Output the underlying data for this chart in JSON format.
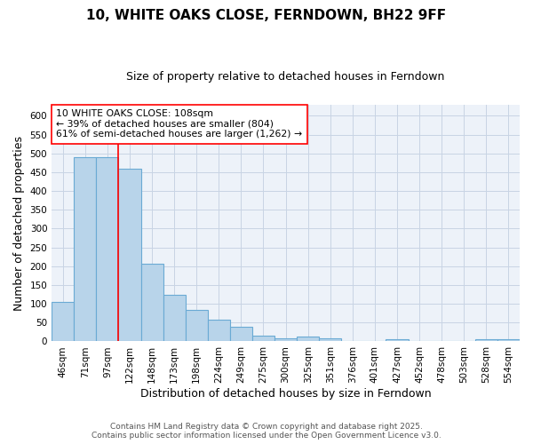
{
  "title": "10, WHITE OAKS CLOSE, FERNDOWN, BH22 9FF",
  "subtitle": "Size of property relative to detached houses in Ferndown",
  "xlabel": "Distribution of detached houses by size in Ferndown",
  "ylabel": "Number of detached properties",
  "bar_labels": [
    "46sqm",
    "71sqm",
    "97sqm",
    "122sqm",
    "148sqm",
    "173sqm",
    "198sqm",
    "224sqm",
    "249sqm",
    "275sqm",
    "300sqm",
    "325sqm",
    "351sqm",
    "376sqm",
    "401sqm",
    "427sqm",
    "452sqm",
    "478sqm",
    "503sqm",
    "528sqm",
    "554sqm"
  ],
  "bar_values": [
    105,
    490,
    490,
    460,
    207,
    124,
    84,
    57,
    38,
    15,
    9,
    12,
    9,
    1,
    0,
    6,
    0,
    0,
    0,
    5,
    5
  ],
  "bar_color": "#b8d4ea",
  "bar_edge_color": "#6aaad4",
  "grid_color": "#c8d4e4",
  "background_color": "#edf2f9",
  "annotation_text": "10 WHITE OAKS CLOSE: 108sqm\n← 39% of detached houses are smaller (804)\n61% of semi-detached houses are larger (1,262) →",
  "footer_text": "Contains HM Land Registry data © Crown copyright and database right 2025.\nContains public sector information licensed under the Open Government Licence v3.0.",
  "ylim": [
    0,
    630
  ],
  "yticks": [
    0,
    50,
    100,
    150,
    200,
    250,
    300,
    350,
    400,
    450,
    500,
    550,
    600
  ],
  "red_line_x": 2.5,
  "title_fontsize": 11,
  "subtitle_fontsize": 9,
  "tick_fontsize": 7.5,
  "label_fontsize": 9,
  "footer_fontsize": 6.5
}
